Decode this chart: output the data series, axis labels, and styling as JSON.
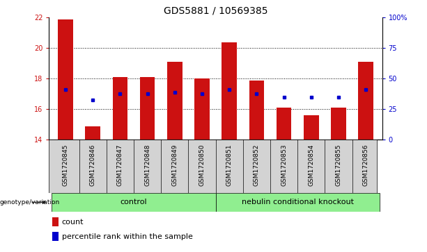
{
  "title": "GDS5881 / 10569385",
  "samples": [
    "GSM1720845",
    "GSM1720846",
    "GSM1720847",
    "GSM1720848",
    "GSM1720849",
    "GSM1720850",
    "GSM1720851",
    "GSM1720852",
    "GSM1720853",
    "GSM1720854",
    "GSM1720855",
    "GSM1720856"
  ],
  "bar_tops": [
    21.9,
    14.9,
    18.1,
    18.1,
    19.1,
    18.0,
    20.4,
    17.9,
    16.1,
    15.6,
    16.1,
    19.1
  ],
  "bar_bottom": 14.0,
  "blue_dots": [
    17.3,
    16.6,
    17.0,
    17.0,
    17.1,
    17.0,
    17.3,
    17.0,
    16.8,
    16.8,
    16.8,
    17.3
  ],
  "ylim": [
    14.0,
    22.0
  ],
  "yticks_left": [
    14,
    16,
    18,
    20,
    22
  ],
  "yticks_right": [
    0,
    25,
    50,
    75,
    100
  ],
  "bar_color": "#cc1111",
  "dot_color": "#0000cc",
  "bar_width": 0.55,
  "grid_yticks": [
    16,
    18,
    20
  ],
  "control_label": "control",
  "ko_label": "nebulin conditional knockout",
  "genotype_label": "genotype/variation",
  "legend_count": "count",
  "legend_percentile": "percentile rank within the sample",
  "bg_control": "#90ee90",
  "bg_ko": "#90ee90",
  "bg_samples": "#d3d3d3",
  "title_fontsize": 10,
  "tick_fontsize": 7,
  "label_fontsize": 8
}
